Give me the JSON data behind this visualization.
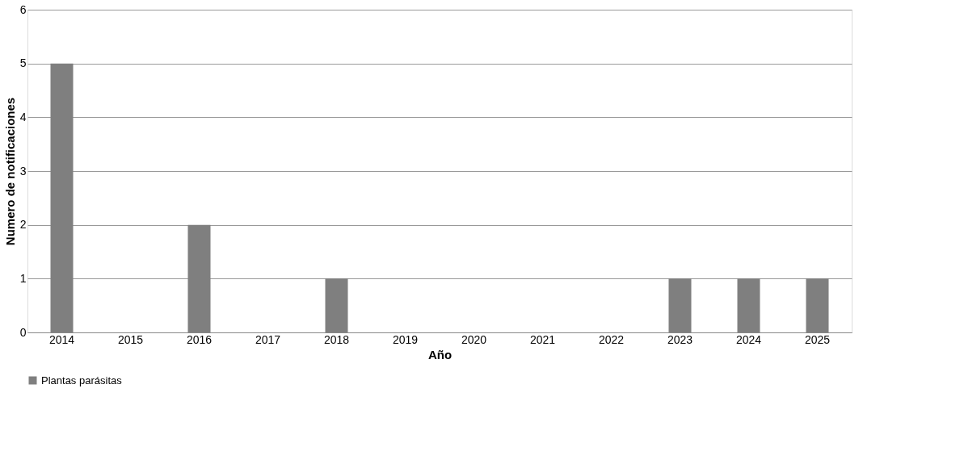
{
  "chart_data": {
    "type": "bar",
    "xlabel": "Año",
    "ylabel": "Numero de notificaciones",
    "categories": [
      "2014",
      "2015",
      "2016",
      "2017",
      "2018",
      "2019",
      "2020",
      "2021",
      "2022",
      "2023",
      "2024",
      "2025"
    ],
    "series": [
      {
        "name": "Plantas parásitas",
        "color": "#7f7f7f",
        "values": [
          5,
          0,
          2,
          0,
          1,
          0,
          0,
          0,
          0,
          1,
          1,
          1
        ]
      }
    ],
    "ylim": [
      0,
      6
    ],
    "yticks": [
      0,
      1,
      2,
      3,
      4,
      5,
      6
    ],
    "grid": "y",
    "legend": "bottom"
  }
}
